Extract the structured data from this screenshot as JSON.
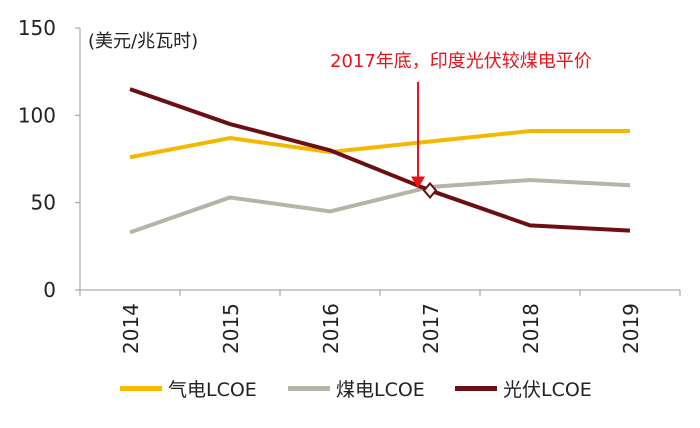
{
  "chart_data": {
    "type": "line",
    "ylabel": "(美元/兆瓦时)",
    "ylim": [
      0,
      150
    ],
    "yticks": [
      "0",
      "50",
      "100",
      "150"
    ],
    "categories": [
      "2014",
      "2015",
      "2016",
      "2017",
      "2018",
      "2019"
    ],
    "series": [
      {
        "name": "气电LCOE",
        "color": "#F5B800",
        "values": [
          76,
          87,
          79,
          85,
          91,
          91
        ]
      },
      {
        "name": "煤电LCOE",
        "color": "#B4B4A8",
        "values": [
          33,
          53,
          45,
          59,
          63,
          60
        ]
      },
      {
        "name": "光伏LCOE",
        "color": "#6B0F12",
        "values": [
          115,
          95,
          80,
          57,
          37,
          34
        ]
      }
    ],
    "annotation": {
      "text": "2017年底，印度光伏较煤电平价",
      "color": "#E8141B",
      "x_category": "2017",
      "y_value": 57
    }
  }
}
